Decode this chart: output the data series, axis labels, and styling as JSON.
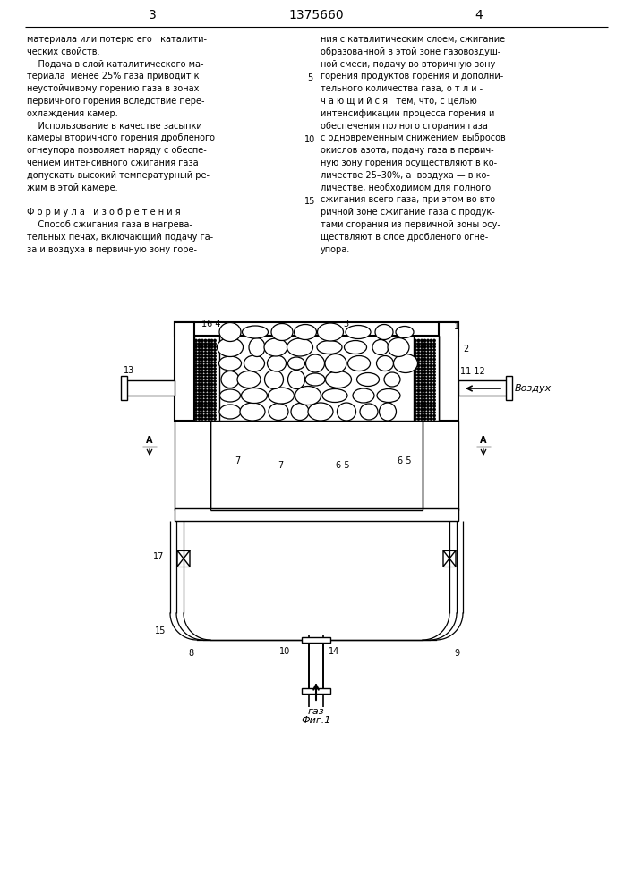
{
  "page_number_left": "3",
  "patent_number": "1375660",
  "page_number_right": "4",
  "col_left_text": [
    "материала или потерю его   каталити-",
    "ческих свойств.",
    "    Подача в слой каталитического ма-",
    "териала  менее 25% газа приводит к",
    "неустойчивому горению газа в зонах",
    "первичного горения вследствие пере-",
    "охлаждения камер.",
    "    Использование в качестве засыпки",
    "камеры вторичного горения дробленого",
    "огнеупора позволяет наряду с обеспе-",
    "чением интенсивного сжигания газа",
    "допускать высокий температурный ре-",
    "жим в этой камере.",
    "",
    "Ф о р м у л а   и з о б р е т е н и я",
    "    Способ сжигания газа в нагрева-",
    "тельных печах, включающий подачу га-",
    "за и воздуха в первичную зону горе-"
  ],
  "col_right_text": [
    "ния с каталитическим слоем, сжигание",
    "образованной в этой зоне газовоздуш-",
    "ной смеси, подачу во вторичную зону",
    "горения продуктов горения и дополни-",
    "тельного количества газа, о т л и -",
    "ч а ю щ и й с я   тем, что, с целью",
    "интенсификации процесса горения и",
    "обеспечения полного сгорания газа",
    "с одновременным снижением выбросов",
    "окислов азота, подачу газа в первич-",
    "ную зону горения осуществляют в ко-",
    "личестве 25–30%, а  воздуха — в ко-",
    "личестве, необходимом для полного",
    "сжигания всего газа, при этом во вто-",
    "ричной зоне сжигание газа с продук-",
    "тами сгорания из первичной зоны осу-",
    "ществляют в слое дробленого огне-",
    "упора."
  ],
  "fig_label": "Фиг.1",
  "gas_label": "газ",
  "air_label": "Воздух",
  "background_color": "#ffffff",
  "text_color": "#000000"
}
